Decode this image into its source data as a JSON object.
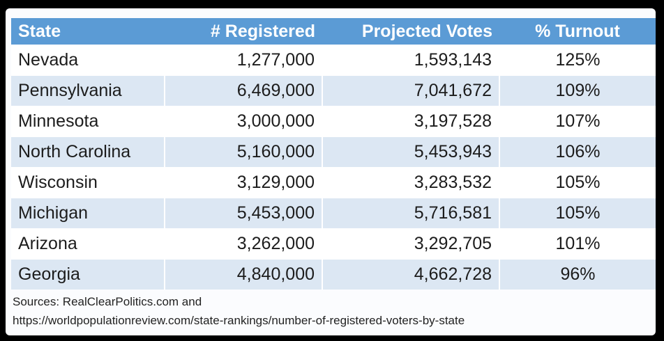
{
  "table": {
    "headers": {
      "state": "State",
      "registered": "# Registered",
      "projected": "Projected Votes",
      "turnout": "% Turnout"
    },
    "rows": [
      {
        "state": "Nevada",
        "registered": "1,277,000",
        "projected": "1,593,143",
        "turnout": "125%"
      },
      {
        "state": "Pennsylvania",
        "registered": "6,469,000",
        "projected": "7,041,672",
        "turnout": "109%"
      },
      {
        "state": "Minnesota",
        "registered": "3,000,000",
        "projected": "3,197,528",
        "turnout": "107%"
      },
      {
        "state": "North Carolina",
        "registered": "5,160,000",
        "projected": "5,453,943",
        "turnout": "106%"
      },
      {
        "state": "Wisconsin",
        "registered": "3,129,000",
        "projected": "3,283,532",
        "turnout": "105%"
      },
      {
        "state": "Michigan",
        "registered": "5,453,000",
        "projected": "5,716,581",
        "turnout": "105%"
      },
      {
        "state": "Arizona",
        "registered": "3,262,000",
        "projected": "3,292,705",
        "turnout": "101%"
      },
      {
        "state": "Georgia",
        "registered": "4,840,000",
        "projected": "4,662,728",
        "turnout": "96%"
      }
    ]
  },
  "sources": {
    "line1": "Sources: RealClearPolitics.com and",
    "line2": "https://worldpopulationreview.com/state-rankings/number-of-registered-voters-by-state"
  },
  "colors": {
    "header_bg": "#5b9bd5",
    "row_alt_bg": "#dce7f3",
    "outer_bg": "#000000"
  }
}
